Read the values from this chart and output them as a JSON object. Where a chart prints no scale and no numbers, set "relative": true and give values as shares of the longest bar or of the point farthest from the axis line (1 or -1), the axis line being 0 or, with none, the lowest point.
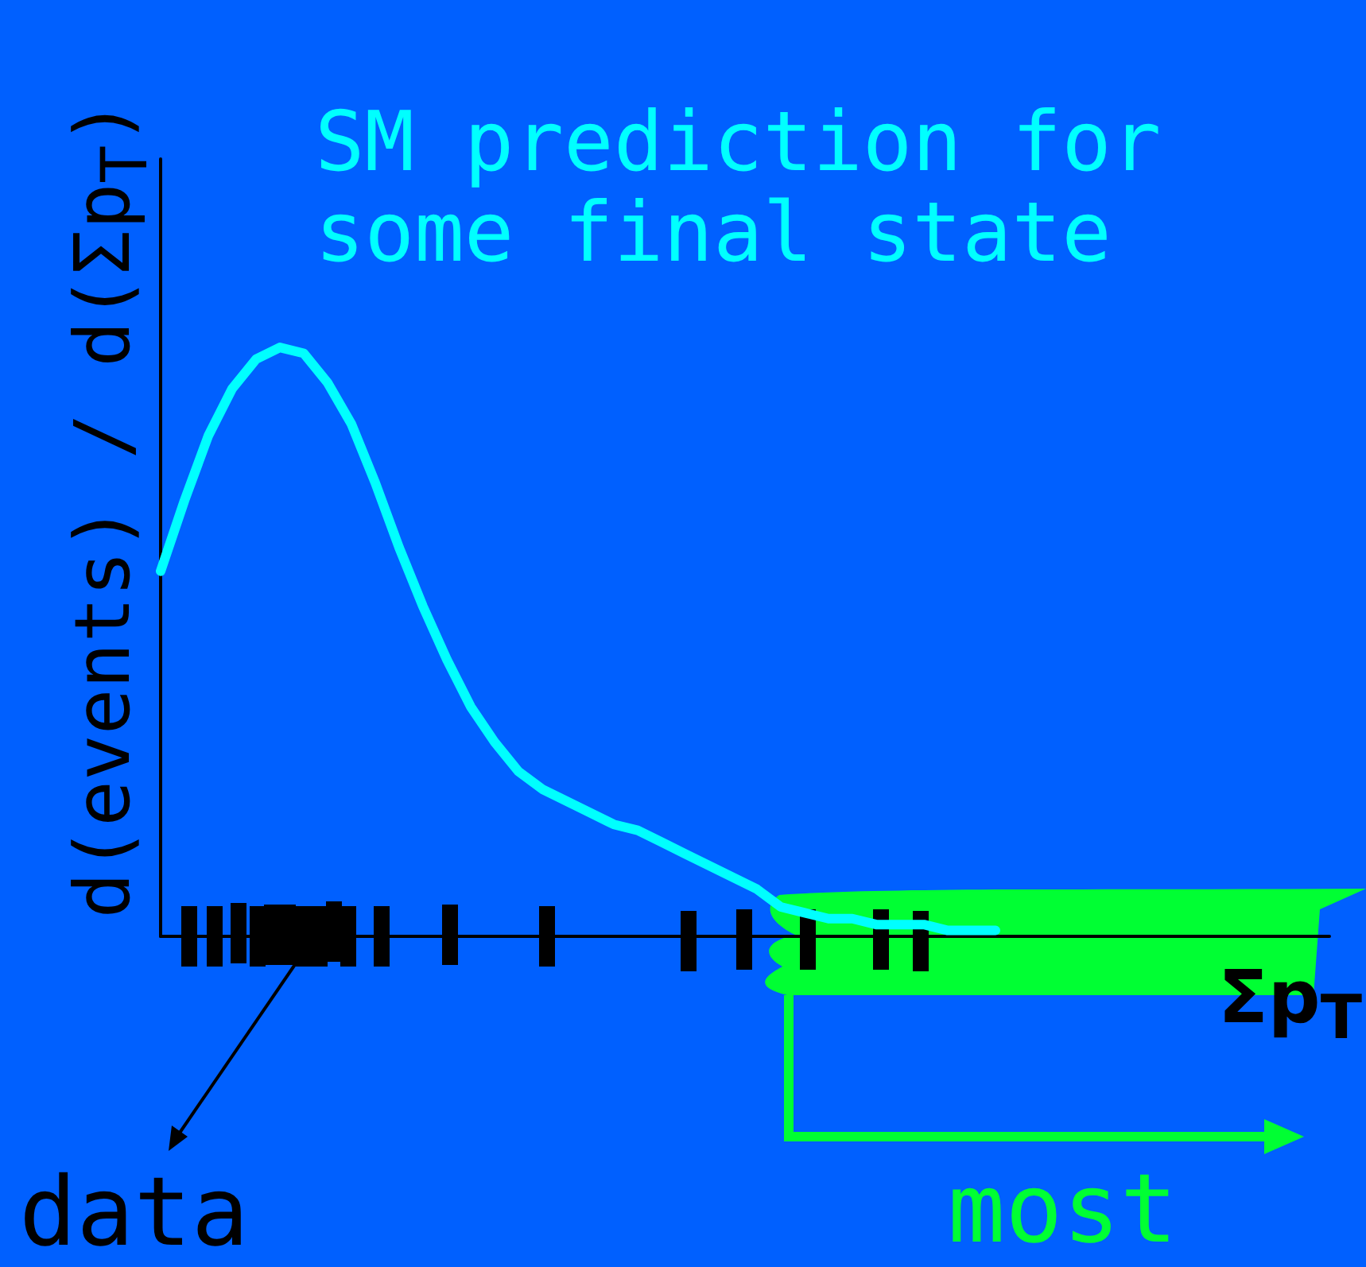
{
  "chart_data": {
    "type": "line",
    "title": "SM prediction for\nsome final state",
    "xlabel": "Σp$_{T}$",
    "ylabel": "d(events) / d(Σp$_{T}$)",
    "annotations": [
      "data",
      "most"
    ],
    "relative": true,
    "marker": "none",
    "line_style": "solid",
    "categories": [
      null,
      null,
      null,
      null,
      null,
      null,
      null,
      null,
      null,
      null,
      null,
      null,
      null,
      null,
      null,
      null,
      null,
      null,
      null,
      null,
      null,
      null,
      null,
      null,
      null,
      null,
      null,
      null,
      null,
      null,
      null,
      null,
      null,
      null,
      null,
      null,
      null,
      null,
      null,
      null,
      null,
      null,
      null,
      null,
      null,
      null,
      null,
      null,
      null,
      null
    ],
    "series": [
      {
        "color": "#00ffff",
        "values": [
          0.62,
          0.74,
          0.85,
          0.93,
          0.98,
          1.0,
          0.99,
          0.94,
          0.87,
          0.77,
          0.66,
          0.56,
          0.47,
          0.39,
          0.33,
          0.28,
          0.25,
          0.23,
          0.21,
          0.19,
          0.18,
          0.16,
          0.14,
          0.12,
          0.1,
          0.08,
          0.05,
          0.04,
          0.03,
          0.03,
          0.02,
          0.02,
          0.02,
          0.01,
          0.01,
          0.01,
          null,
          null,
          null,
          null,
          null,
          null,
          null,
          null,
          null,
          null,
          null,
          null,
          null,
          null
        ]
      }
    ]
  }
}
